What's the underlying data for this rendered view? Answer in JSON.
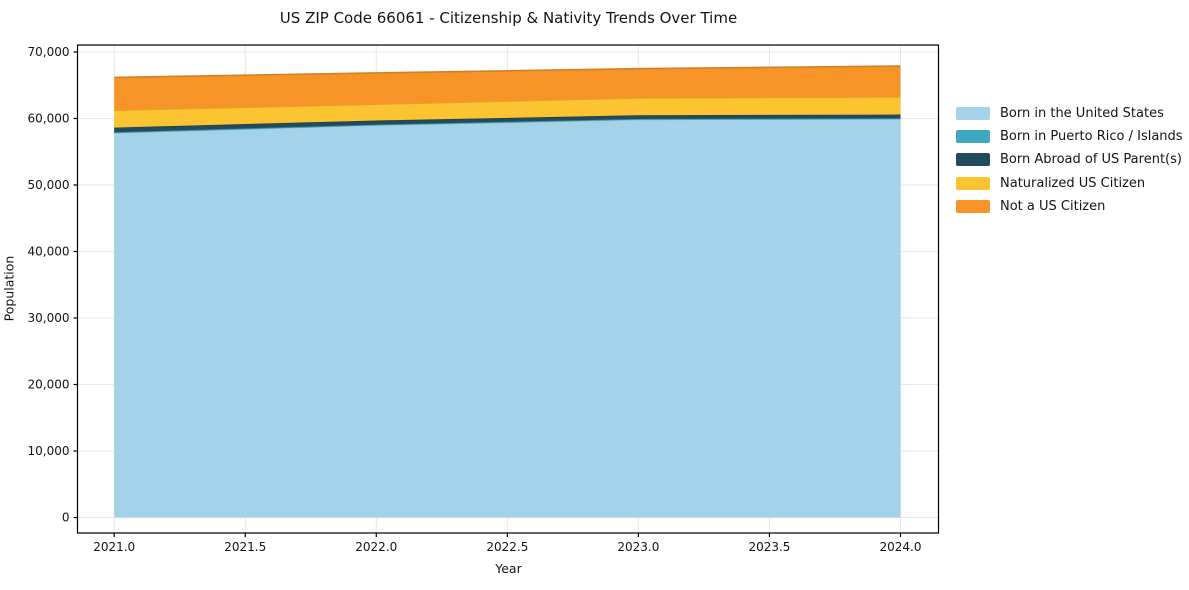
{
  "title": "US ZIP Code 66061 - Citizenship & Nativity Trends Over Time",
  "axes": {
    "x_label": "Year",
    "y_label": "Population",
    "x_tick_labels": [
      "2021.0",
      "2021.5",
      "2022.0",
      "2022.5",
      "2023.0",
      "2023.5",
      "2024.0"
    ],
    "y_tick_labels": [
      "0",
      "10,000",
      "20,000",
      "30,000",
      "40,000",
      "50,000",
      "60,000",
      "70,000"
    ]
  },
  "chart_data": {
    "type": "area",
    "stacked": true,
    "title": "US ZIP Code 66061 - Citizenship & Nativity Trends Over Time",
    "xlabel": "Year",
    "ylabel": "Population",
    "x": [
      2021,
      2022,
      2023,
      2024
    ],
    "series": [
      {
        "name": "Born in the United States",
        "color": "#a4d3e9",
        "values": [
          57850,
          59000,
          59850,
          59950
        ]
      },
      {
        "name": "Born in Puerto Rico / Islands",
        "color": "#41a6bf",
        "values": [
          80,
          80,
          80,
          80
        ]
      },
      {
        "name": "Born Abroad of US Parent(s)",
        "color": "#234b5e",
        "values": [
          700,
          620,
          560,
          560
        ]
      },
      {
        "name": "Naturalized US Citizen",
        "color": "#fcc430",
        "values": [
          2600,
          2450,
          2600,
          2650
        ]
      },
      {
        "name": "Not a US Citizen",
        "color": "#f79428",
        "values": [
          4950,
          4700,
          4400,
          4650
        ]
      }
    ],
    "xlim": [
      2020.86,
      2024.145
    ],
    "ylim": [
      -2330,
      71050
    ],
    "grid": true,
    "grid_color": "#e7e7e7",
    "legend_position": "outside-right"
  }
}
